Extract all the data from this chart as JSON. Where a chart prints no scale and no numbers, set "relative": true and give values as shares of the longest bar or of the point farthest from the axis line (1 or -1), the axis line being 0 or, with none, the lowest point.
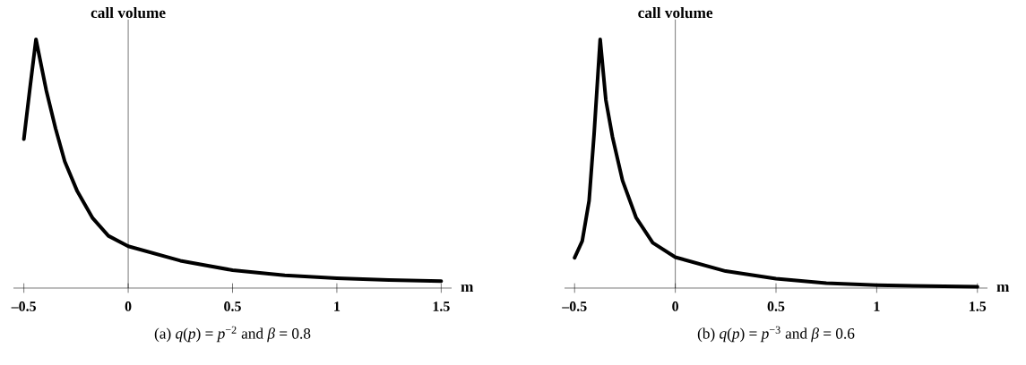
{
  "chart_data": [
    {
      "type": "line",
      "relative": true,
      "xlabel": "m",
      "ylabel": "call volume",
      "color": "#000000",
      "x": [
        -0.5,
        -0.472,
        -0.442,
        -0.393,
        -0.348,
        -0.304,
        -0.244,
        -0.17,
        -0.095,
        0,
        0.25,
        0.5,
        0.75,
        1,
        1.25,
        1.5
      ],
      "values": [
        0.599,
        0.796,
        1,
        0.796,
        0.641,
        0.509,
        0.389,
        0.281,
        0.21,
        0.168,
        0.11,
        0.072,
        0.051,
        0.04,
        0.032,
        0.028
      ],
      "xlim": [
        -0.55,
        1.55
      ],
      "xticks": [
        {
          "value": -0.5,
          "label": "–0.5"
        },
        0,
        0.5,
        1,
        1.5
      ],
      "annotations": [
        "(a) *q*(*p*) = *p*$^{−2}$ and *β* = 0.8"
      ]
    },
    {
      "type": "line",
      "relative": true,
      "xlabel": "m",
      "ylabel": "call volume",
      "color": "#000000",
      "x": [
        -0.5,
        -0.462,
        -0.428,
        -0.403,
        -0.373,
        -0.345,
        -0.312,
        -0.262,
        -0.195,
        -0.112,
        0,
        0.25,
        0.5,
        0.75,
        1,
        1.25,
        1.5
      ],
      "values": [
        0.122,
        0.189,
        0.351,
        0.622,
        1,
        0.757,
        0.608,
        0.432,
        0.284,
        0.182,
        0.124,
        0.068,
        0.038,
        0.02,
        0.012,
        0.008,
        0.005
      ],
      "xlim": [
        -0.55,
        1.55
      ],
      "xticks": [
        {
          "value": -0.5,
          "label": "–0.5"
        },
        0,
        0.5,
        1,
        1.5
      ],
      "annotations": [
        "(b) *q*(*p*) = *p*$^{−3}$ and *β* = 0.6"
      ]
    }
  ]
}
